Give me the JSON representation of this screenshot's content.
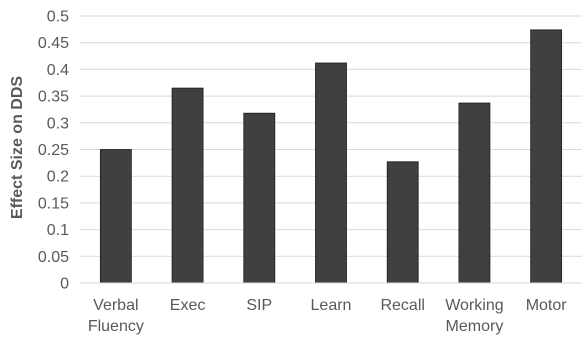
{
  "chart_data": {
    "type": "bar",
    "title": "",
    "xlabel": "",
    "ylabel": "Effect Size on DDS",
    "categories": [
      [
        "Verbal",
        "Fluency"
      ],
      [
        "Exec"
      ],
      [
        "SIP"
      ],
      [
        "Learn"
      ],
      [
        "Recall"
      ],
      [
        "Working",
        "Memory"
      ],
      [
        "Motor"
      ]
    ],
    "values": [
      0.25,
      0.365,
      0.318,
      0.412,
      0.227,
      0.337,
      0.474
    ],
    "ylim": [
      0,
      0.5
    ],
    "yticks": [
      "0",
      "0.05",
      "0.1",
      "0.15",
      "0.2",
      "0.25",
      "0.3",
      "0.35",
      "0.4",
      "0.45",
      "0.5"
    ],
    "grid": true,
    "legend": "none",
    "bar_color": "#404040"
  }
}
